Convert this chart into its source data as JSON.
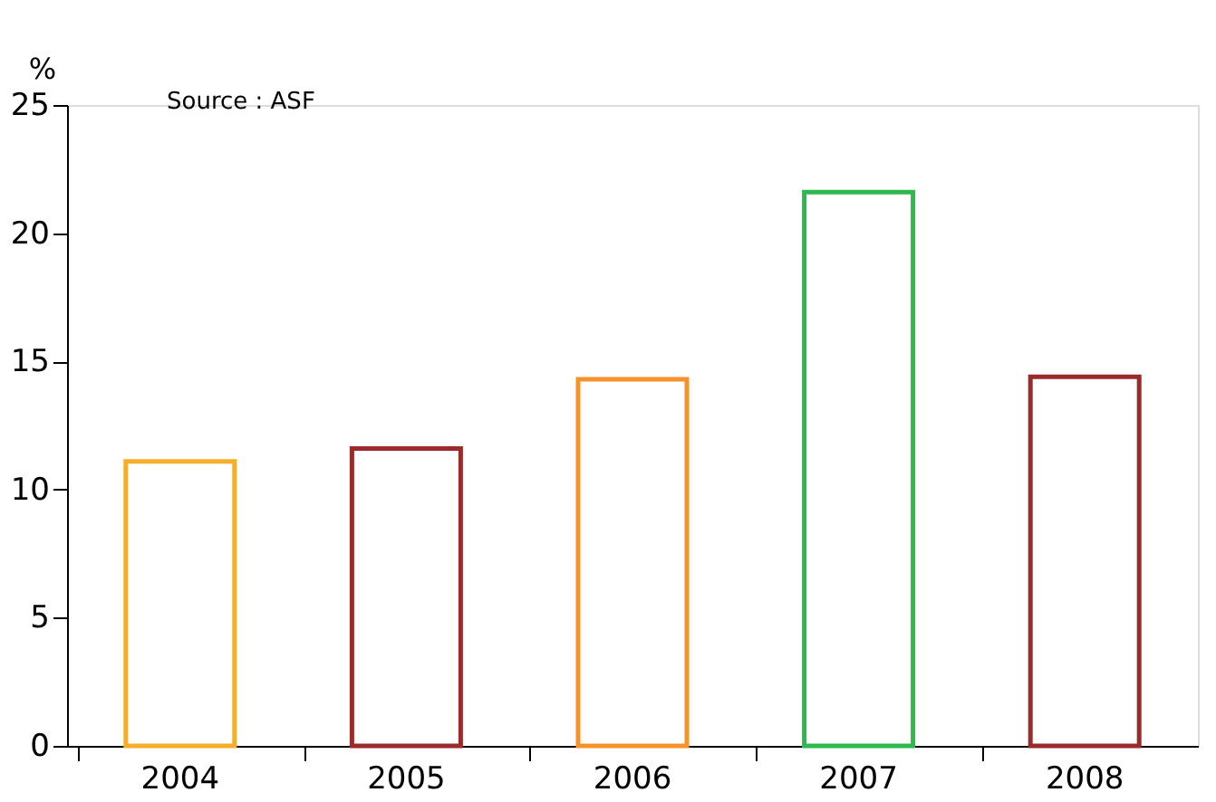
{
  "chart_data": {
    "type": "bar",
    "ylabel": "%",
    "annotations": [
      "Source : ASF"
    ],
    "categories": [
      "2004",
      "2005",
      "2006",
      "2007",
      "2008"
    ],
    "values": [
      11.1,
      11.6,
      14.3,
      21.6,
      14.4
    ],
    "colors": [
      "#f5ad2a",
      "#9b2a2a",
      "#f7922a",
      "#2fb84e",
      "#9b2a2a"
    ],
    "ylim": [
      0,
      25
    ],
    "yticks": [
      0,
      5,
      10,
      15,
      20,
      25
    ],
    "grid": false
  }
}
